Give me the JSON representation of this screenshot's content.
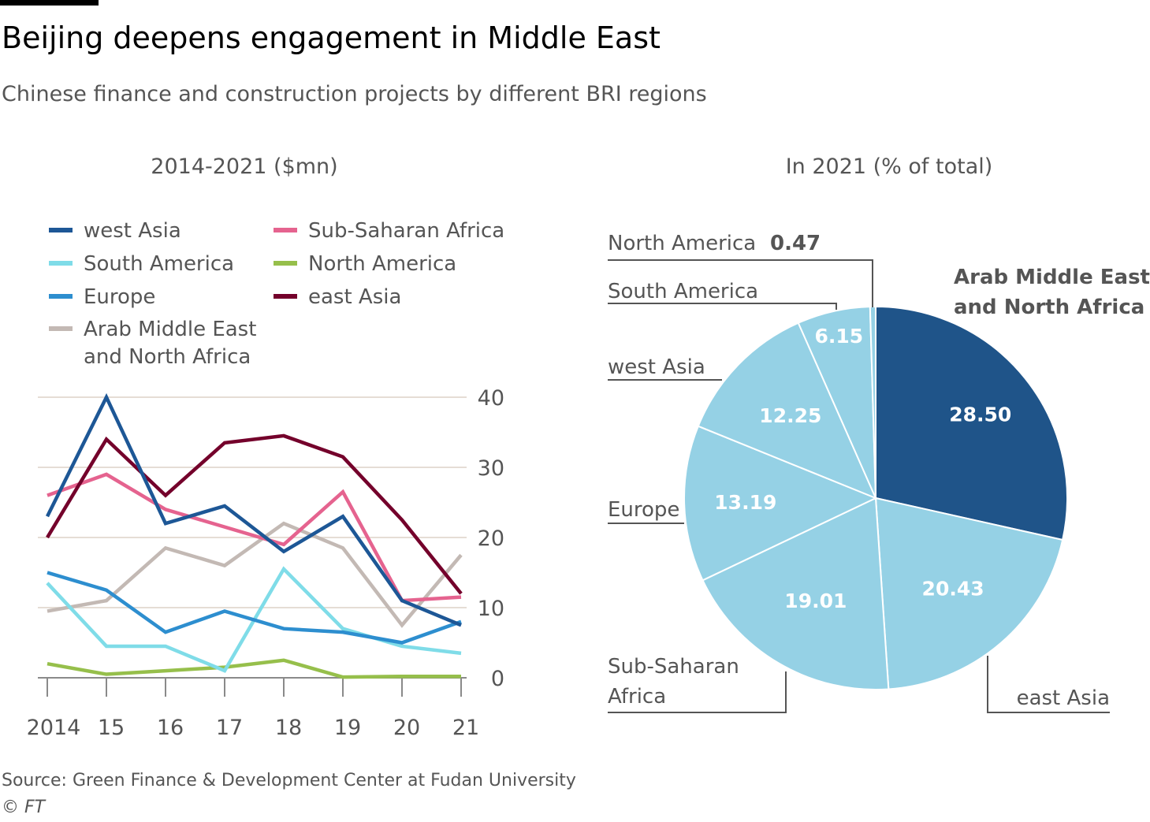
{
  "title": "Beijing deepens engagement in Middle East",
  "subtitle": "Chinese finance and construction projects by different BRI regions",
  "source": "Source: Green Finance & Development Center at Fudan University",
  "credit": "© FT",
  "chart_data": [
    {
      "type": "line",
      "title": "2014-2021 ($mn)",
      "x": [
        2014,
        2015,
        2016,
        2017,
        2018,
        2019,
        2020,
        2021
      ],
      "x_tick_labels": [
        "2014",
        "15",
        "16",
        "17",
        "18",
        "19",
        "20",
        "21"
      ],
      "y_ticks": [
        "0",
        "10",
        "20",
        "30",
        "40"
      ],
      "ylim": [
        0,
        40
      ],
      "grid": true,
      "series": [
        {
          "name": "west Asia",
          "color": "#1d5796",
          "values": [
            23,
            40,
            22,
            24.5,
            18,
            23,
            11,
            7.5
          ]
        },
        {
          "name": "Sub-Saharan Africa",
          "color": "#e5638f",
          "values": [
            26,
            29,
            24,
            21.5,
            19,
            26.5,
            11,
            11.5
          ]
        },
        {
          "name": "South America",
          "color": "#7fdce8",
          "values": [
            13.5,
            4.5,
            4.5,
            1,
            15.5,
            7,
            4.5,
            3.5
          ]
        },
        {
          "name": "North America",
          "color": "#96bf4b",
          "values": [
            2,
            0.5,
            1,
            1.5,
            2.5,
            0.1,
            0.2,
            0.2
          ]
        },
        {
          "name": "Europe",
          "color": "#2d8ecf",
          "values": [
            15,
            12.5,
            6.5,
            9.5,
            7,
            6.5,
            5,
            8
          ]
        },
        {
          "name": "east Asia",
          "color": "#74002b",
          "values": [
            20,
            34,
            26,
            33.5,
            34.5,
            31.5,
            22.5,
            12
          ]
        },
        {
          "name": "Arab Middle East\nand North Africa",
          "legend_lines": [
            "Arab Middle East",
            "and North Africa"
          ],
          "color": "#c3b9b4",
          "values": [
            9.5,
            11,
            18.5,
            16,
            22,
            18.5,
            7.5,
            17.5
          ]
        }
      ]
    },
    {
      "type": "pie",
      "title": "In 2021 (% of total)",
      "slices": [
        {
          "label": "Arab Middle East and North Africa",
          "label_lines": [
            "Arab Middle East",
            "and North Africa"
          ],
          "value": 28.5,
          "value_label": "28.50",
          "color": "#1f5489"
        },
        {
          "label": "east Asia",
          "label_lines": [
            "east Asia"
          ],
          "value": 20.43,
          "value_label": "20.43",
          "color": "#95d1e5"
        },
        {
          "label": "Sub-Saharan Africa",
          "label_lines": [
            "Sub-Saharan",
            "Africa"
          ],
          "value": 19.01,
          "value_label": "19.01",
          "color": "#95d1e5"
        },
        {
          "label": "Europe",
          "label_lines": [
            "Europe"
          ],
          "value": 13.19,
          "value_label": "13.19",
          "color": "#95d1e5"
        },
        {
          "label": "west Asia",
          "label_lines": [
            "west Asia"
          ],
          "value": 12.25,
          "value_label": "12.25",
          "color": "#95d1e5"
        },
        {
          "label": "South America",
          "label_lines": [
            "South America"
          ],
          "value": 6.15,
          "value_label": "6.15",
          "color": "#95d1e5"
        },
        {
          "label": "North America",
          "label_lines": [
            "North America"
          ],
          "value": 0.47,
          "value_label": "0.47",
          "color": "#95d1e5"
        }
      ]
    }
  ]
}
